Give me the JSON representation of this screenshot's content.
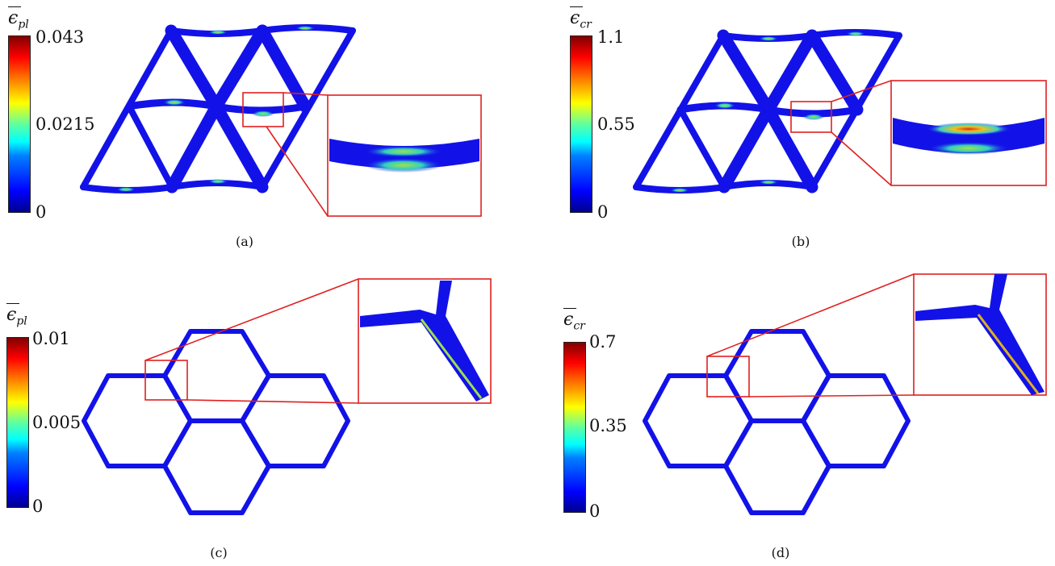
{
  "panels": [
    {
      "caption": "(a)",
      "legend_symbol": "ϵ",
      "legend_sub": "pl",
      "ticks": {
        "max": "0.043",
        "mid": "0.0215",
        "min": "0"
      }
    },
    {
      "caption": "(b)",
      "legend_symbol": "ϵ",
      "legend_sub": "cr",
      "ticks": {
        "max": "1.1",
        "mid": "0.55",
        "min": "0"
      }
    },
    {
      "caption": "(c)",
      "legend_symbol": "ϵ",
      "legend_sub": "pl",
      "ticks": {
        "max": "0.01",
        "mid": "0.005",
        "min": "0"
      }
    },
    {
      "caption": "(d)",
      "legend_symbol": "ϵ",
      "legend_sub": "cr",
      "ticks": {
        "max": "0.7",
        "mid": "0.35",
        "min": "0"
      }
    }
  ],
  "colors": {
    "structure": "#1010e0",
    "highlight": "#e02020",
    "hot": "#c0e040"
  }
}
